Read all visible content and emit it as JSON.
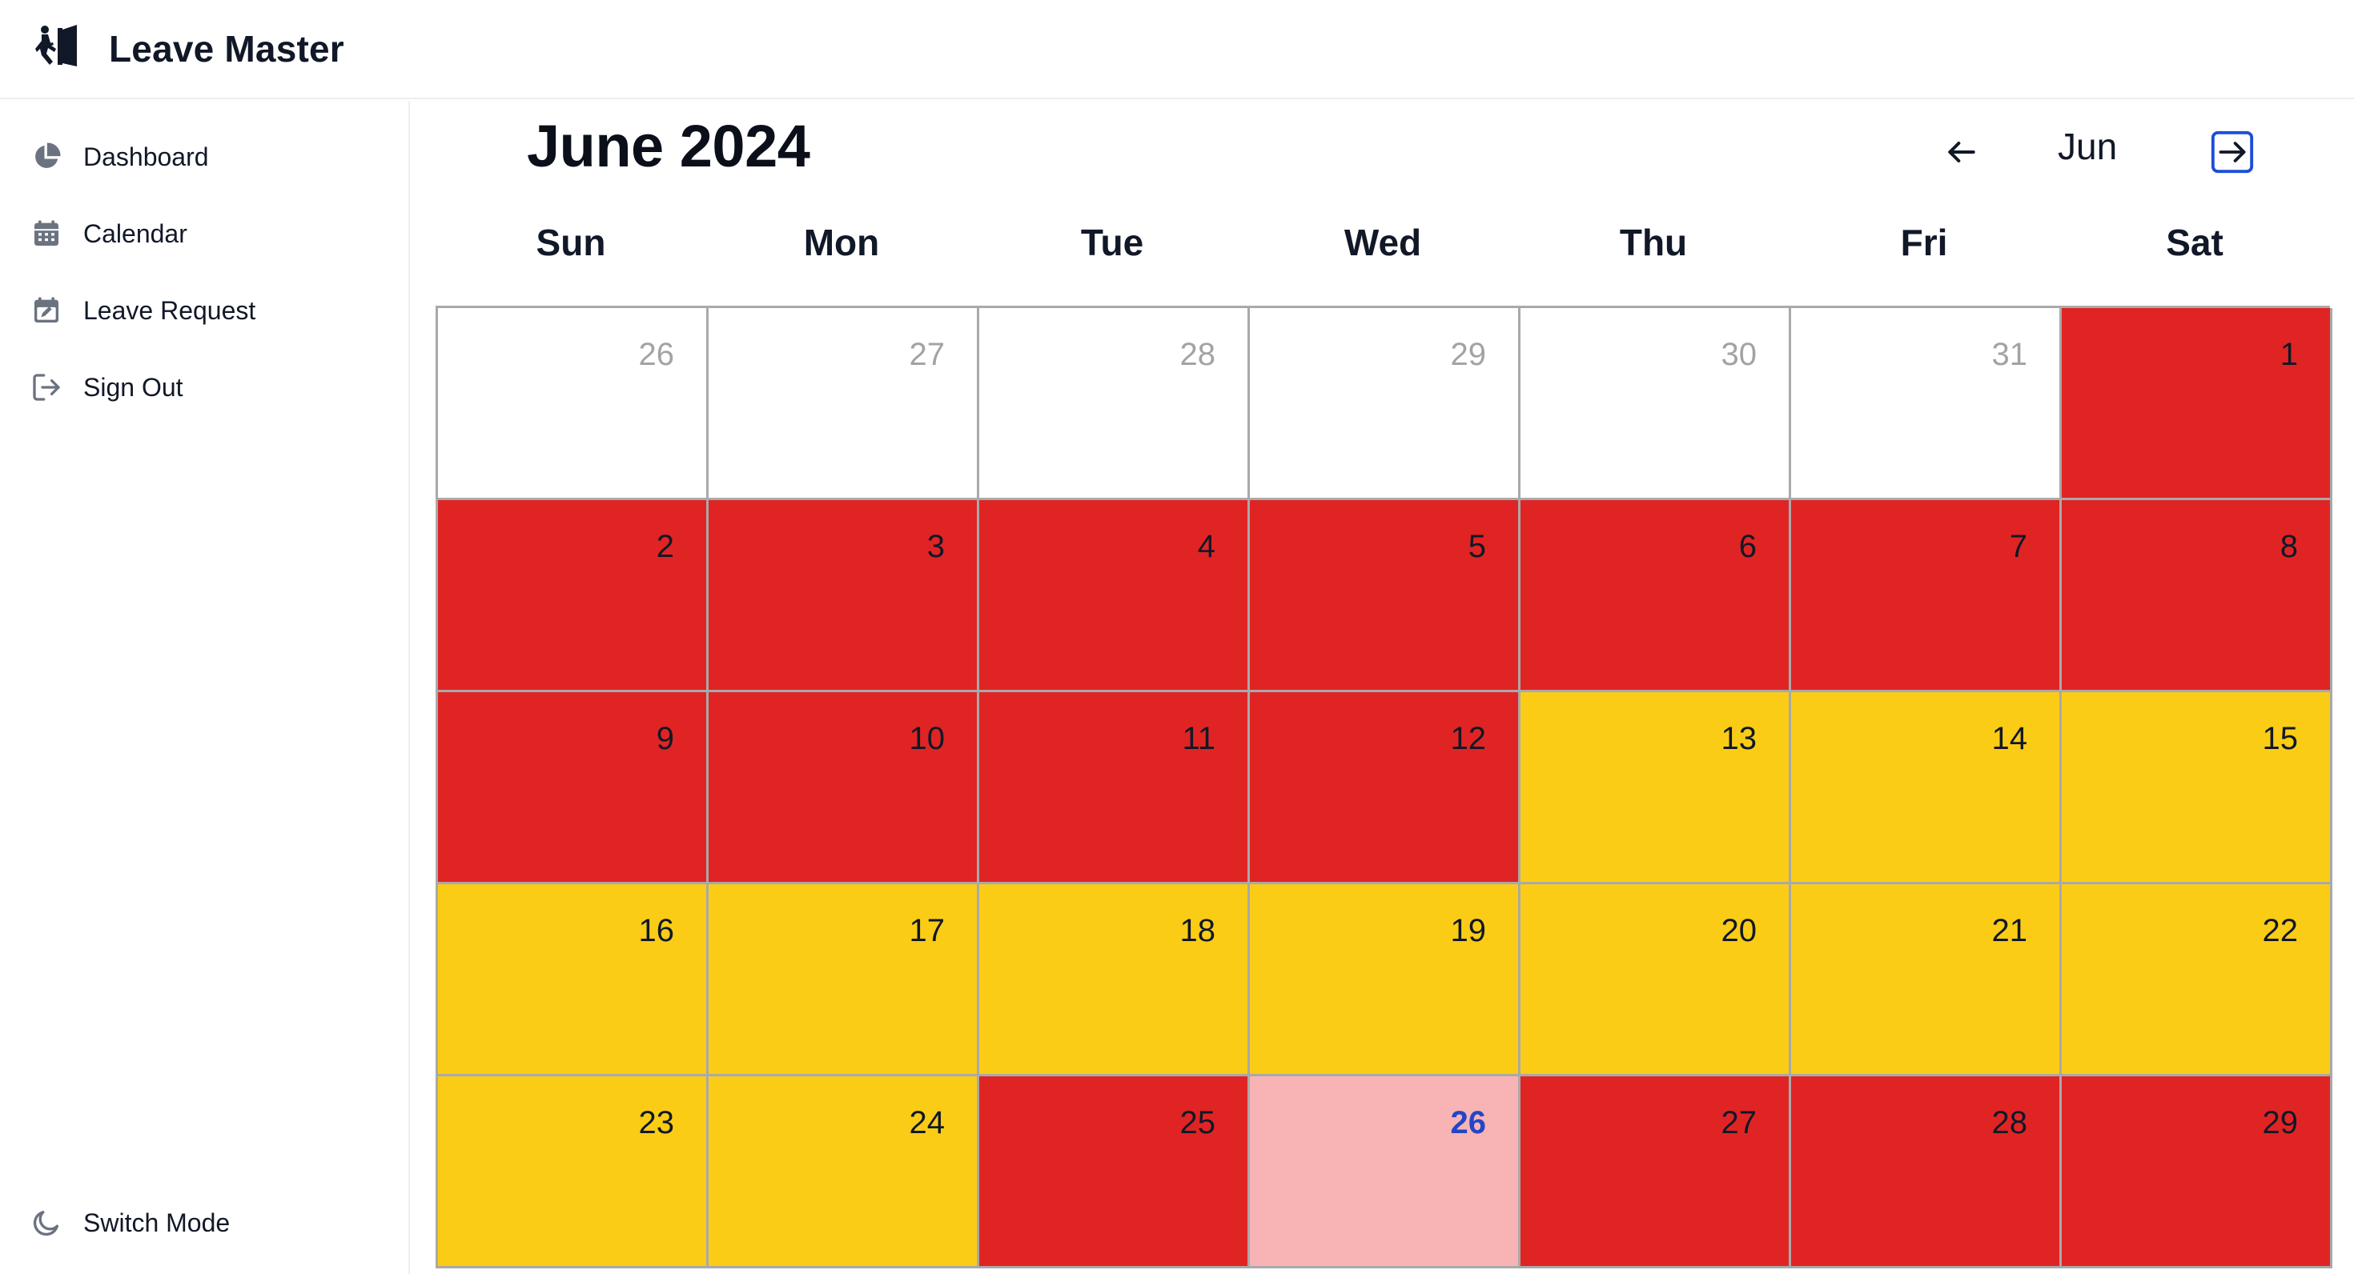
{
  "app": {
    "title": "Leave Master",
    "logo_icon": "person-exit-door-icon"
  },
  "sidebar": {
    "items": [
      {
        "label": "Dashboard",
        "icon": "pie-chart-icon"
      },
      {
        "label": "Calendar",
        "icon": "calendar-icon"
      },
      {
        "label": "Leave Request",
        "icon": "calendar-edit-icon"
      },
      {
        "label": "Sign Out",
        "icon": "sign-out-icon"
      }
    ],
    "switch_mode": {
      "label": "Switch Mode",
      "icon": "moon-icon"
    }
  },
  "calendar": {
    "title": "June 2024",
    "current_month_short": "Jun",
    "prev_icon": "arrow-left-icon",
    "next_icon": "arrow-right-square-icon",
    "weekdays": [
      "Sun",
      "Mon",
      "Tue",
      "Wed",
      "Thu",
      "Fri",
      "Sat"
    ],
    "colors": {
      "red": "#e02424",
      "yellow": "#facc15",
      "pink": "#f8b4b4",
      "white": "#ffffff",
      "today_text": "#2346c7",
      "outside_text": "#a3a3a3"
    },
    "weeks": [
      [
        {
          "day": "26",
          "status": "white",
          "outside": true
        },
        {
          "day": "27",
          "status": "white",
          "outside": true
        },
        {
          "day": "28",
          "status": "white",
          "outside": true
        },
        {
          "day": "29",
          "status": "white",
          "outside": true
        },
        {
          "day": "30",
          "status": "white",
          "outside": true
        },
        {
          "day": "31",
          "status": "white",
          "outside": true
        },
        {
          "day": "1",
          "status": "red"
        }
      ],
      [
        {
          "day": "2",
          "status": "red"
        },
        {
          "day": "3",
          "status": "red"
        },
        {
          "day": "4",
          "status": "red"
        },
        {
          "day": "5",
          "status": "red"
        },
        {
          "day": "6",
          "status": "red"
        },
        {
          "day": "7",
          "status": "red"
        },
        {
          "day": "8",
          "status": "red"
        }
      ],
      [
        {
          "day": "9",
          "status": "red"
        },
        {
          "day": "10",
          "status": "red"
        },
        {
          "day": "11",
          "status": "red"
        },
        {
          "day": "12",
          "status": "red"
        },
        {
          "day": "13",
          "status": "yellow"
        },
        {
          "day": "14",
          "status": "yellow"
        },
        {
          "day": "15",
          "status": "yellow"
        }
      ],
      [
        {
          "day": "16",
          "status": "yellow"
        },
        {
          "day": "17",
          "status": "yellow"
        },
        {
          "day": "18",
          "status": "yellow"
        },
        {
          "day": "19",
          "status": "yellow"
        },
        {
          "day": "20",
          "status": "yellow"
        },
        {
          "day": "21",
          "status": "yellow"
        },
        {
          "day": "22",
          "status": "yellow"
        }
      ],
      [
        {
          "day": "23",
          "status": "yellow"
        },
        {
          "day": "24",
          "status": "yellow"
        },
        {
          "day": "25",
          "status": "red"
        },
        {
          "day": "26",
          "status": "pink",
          "today": true
        },
        {
          "day": "27",
          "status": "red"
        },
        {
          "day": "28",
          "status": "red"
        },
        {
          "day": "29",
          "status": "red"
        }
      ]
    ]
  }
}
